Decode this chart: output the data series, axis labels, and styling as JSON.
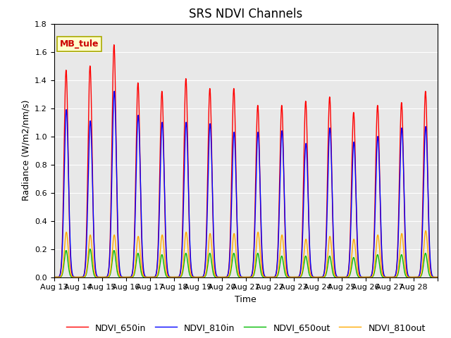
{
  "title": "SRS NDVI Channels",
  "xlabel": "Time",
  "ylabel": "Radiance (W/m2/nm/s)",
  "annotation": "MB_tule",
  "ylim": [
    0,
    1.8
  ],
  "colors": {
    "NDVI_650in": "#ff0000",
    "NDVI_810in": "#0000ff",
    "NDVI_650out": "#00bb00",
    "NDVI_810out": "#ffaa00"
  },
  "day_labels": [
    "Aug 13",
    "Aug 14",
    "Aug 15",
    "Aug 16",
    "Aug 17",
    "Aug 18",
    "Aug 19",
    "Aug 20",
    "Aug 21",
    "Aug 22",
    "Aug 23",
    "Aug 24",
    "Aug 25",
    "Aug 26",
    "Aug 27",
    "Aug 28"
  ],
  "peak_650in": [
    1.47,
    1.5,
    1.65,
    1.38,
    1.32,
    1.41,
    1.34,
    1.34,
    1.22,
    1.22,
    1.25,
    1.28,
    1.17,
    1.22,
    1.24,
    1.32
  ],
  "peak_810in": [
    1.19,
    1.11,
    1.32,
    1.15,
    1.1,
    1.1,
    1.09,
    1.03,
    1.03,
    1.04,
    0.95,
    1.06,
    0.96,
    1.0,
    1.06,
    1.07
  ],
  "peak_650out": [
    0.19,
    0.2,
    0.19,
    0.17,
    0.16,
    0.17,
    0.17,
    0.17,
    0.17,
    0.15,
    0.15,
    0.15,
    0.14,
    0.16,
    0.16,
    0.17
  ],
  "peak_810out": [
    0.32,
    0.3,
    0.3,
    0.29,
    0.3,
    0.32,
    0.31,
    0.31,
    0.32,
    0.3,
    0.27,
    0.29,
    0.27,
    0.3,
    0.31,
    0.33
  ],
  "background_color": "#e8e8e8",
  "grid_color": "#ffffff",
  "title_fontsize": 12,
  "label_fontsize": 9,
  "tick_fontsize": 8,
  "linewidth": 1.0,
  "legend_fontsize": 9
}
